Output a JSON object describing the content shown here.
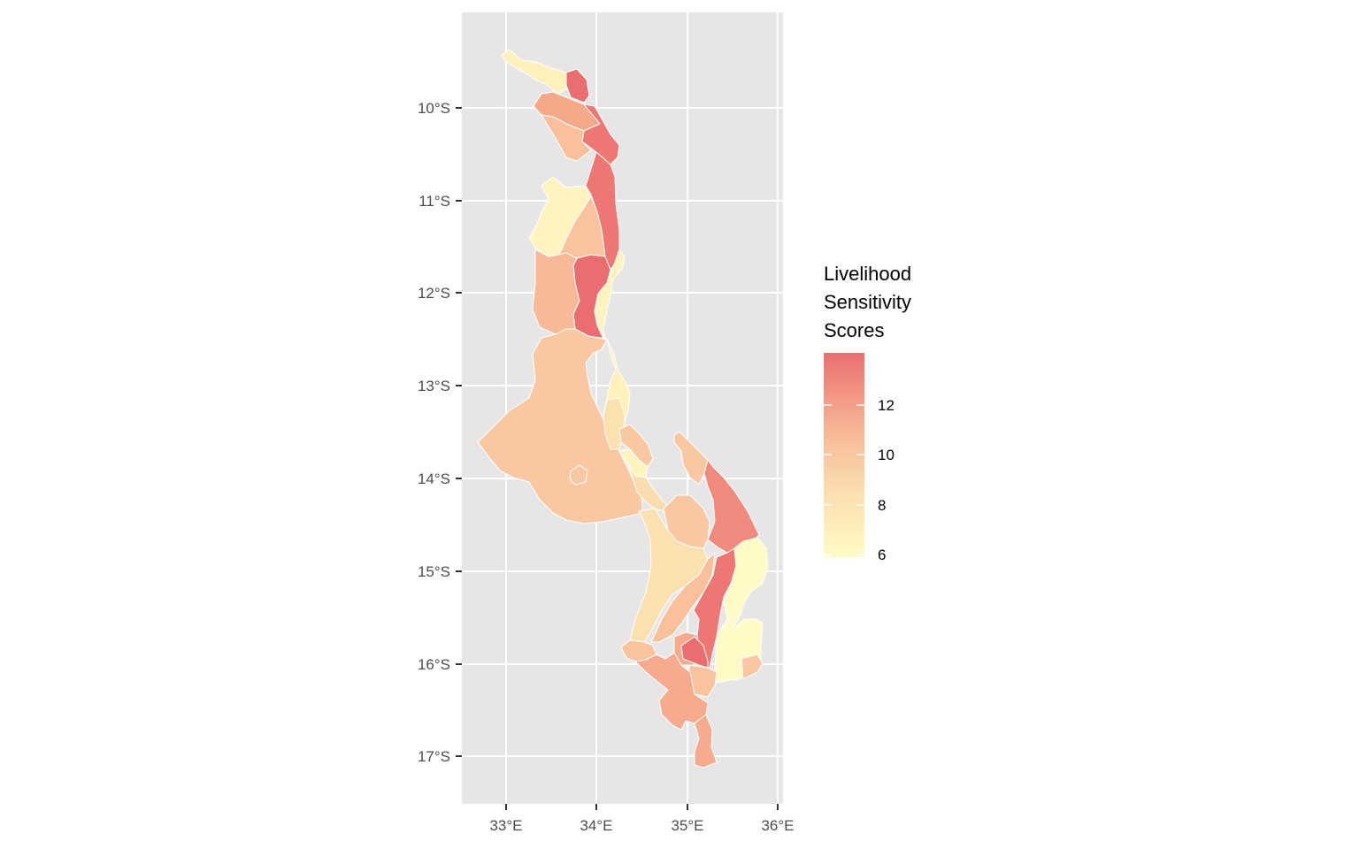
{
  "map": {
    "x_axis": {
      "ticks": [
        "33°E",
        "34°E",
        "35°E",
        "36°E"
      ]
    },
    "y_axis": {
      "ticks": [
        "10°S",
        "11°S",
        "12°S",
        "13°S",
        "14°S",
        "15°S",
        "16°S",
        "17°S"
      ]
    },
    "panel_background": "#e6e6e6",
    "grid_color": "#ffffff",
    "border_color": "#ffffff",
    "legend": {
      "title_lines": [
        "Livelihood",
        "Sensitivity",
        "Scores"
      ],
      "labels": [
        "12",
        "10",
        "8",
        "6"
      ],
      "values": [
        12,
        10,
        8,
        6
      ],
      "range": [
        5.8,
        13.9
      ],
      "colors": {
        "low": "#fffbc6",
        "mid": "#f8c8a0",
        "high": "#ea6e6f"
      }
    }
  }
}
